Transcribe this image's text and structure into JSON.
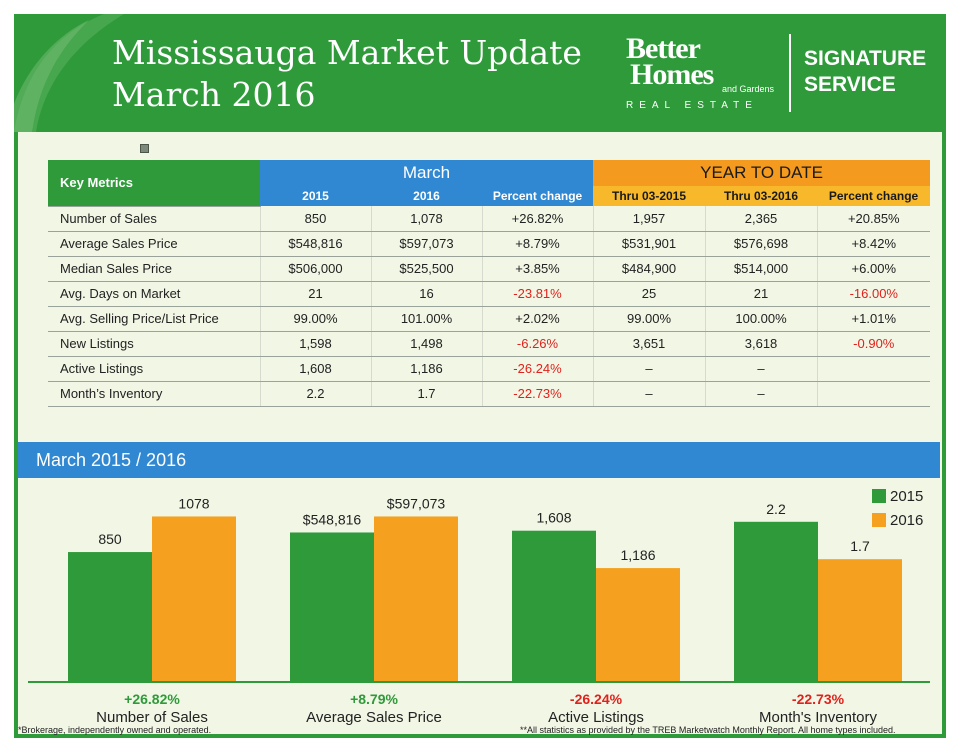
{
  "header": {
    "title_line1": "Mississauga Market Update",
    "title_line2": "March 2016",
    "brand_better": "Better",
    "brand_homes": "Homes",
    "brand_and_gardens": "and Gardens",
    "brand_real_estate": "REAL ESTATE",
    "signature_line1": "SIGNATURE",
    "signature_line2": "SERVICE"
  },
  "table": {
    "key_metrics_label": "Key Metrics",
    "march_label": "March",
    "ytd_label": "YEAR TO DATE",
    "columns": [
      "2015",
      "2016",
      "Percent change",
      "Thru 03-2015",
      "Thru 03-2016",
      "Percent change"
    ],
    "rows": [
      {
        "metric": "Number of Sales",
        "cells": [
          "850",
          "1,078",
          "+26.82%",
          "1,957",
          "2,365",
          "+20.85%"
        ]
      },
      {
        "metric": "Average Sales Price",
        "cells": [
          "$548,816",
          "$597,073",
          "+8.79%",
          "$531,901",
          "$576,698",
          "+8.42%"
        ]
      },
      {
        "metric": "Median Sales Price",
        "cells": [
          "$506,000",
          "$525,500",
          "+3.85%",
          "$484,900",
          "$514,000",
          "+6.00%"
        ]
      },
      {
        "metric": "Avg. Days on Market",
        "cells": [
          "21",
          "16",
          "-23.81%",
          "25",
          "21",
          "-16.00%"
        ]
      },
      {
        "metric": "Avg. Selling Price/List Price",
        "cells": [
          "99.00%",
          "101.00%",
          "+2.02%",
          "99.00%",
          "100.00%",
          "+1.01%"
        ]
      },
      {
        "metric": "New Listings",
        "cells": [
          "1,598",
          "1,498",
          "-6.26%",
          "3,651",
          "3,618",
          "-0.90%"
        ]
      },
      {
        "metric": "Active Listings",
        "cells": [
          "1,608",
          "1,186",
          "-26.24%",
          "–",
          "–",
          ""
        ]
      },
      {
        "metric": "Month’s Inventory",
        "cells": [
          "2.2",
          "1.7",
          "-22.73%",
          "–",
          "–",
          ""
        ]
      }
    ]
  },
  "chart_banner": "March  2015 / 2016",
  "chart_data": {
    "type": "bar",
    "legend_position": "top-right",
    "series": [
      {
        "name": "2015",
        "color": "#2f9a3a"
      },
      {
        "name": "2016",
        "color": "#f5a11f"
      }
    ],
    "groups": [
      {
        "category": "Number of Sales",
        "change": "+26.82%",
        "values": [
          850,
          1078
        ],
        "labels": [
          "850",
          "1078"
        ],
        "relative": [
          0.73,
          0.93
        ]
      },
      {
        "category": "Average Sales Price",
        "change": "+8.79%",
        "values": [
          548816,
          597073
        ],
        "labels": [
          "$548,816",
          "$597,073"
        ],
        "relative": [
          0.84,
          0.93
        ]
      },
      {
        "category": "Active Listings",
        "change": "-26.24%",
        "values": [
          1608,
          1186
        ],
        "labels": [
          "1,608",
          "1,186"
        ],
        "relative": [
          0.85,
          0.64
        ]
      },
      {
        "category": "Month's Inventory",
        "change": "-22.73%",
        "values": [
          2.2,
          1.7
        ],
        "labels": [
          "2.2",
          "1.7"
        ],
        "relative": [
          0.9,
          0.69
        ]
      }
    ],
    "positive_color": "#2f9a3a",
    "negative_color": "#e0221c"
  },
  "footer": {
    "left": "*Brokerage, independently owned and operated.",
    "right": "**All statistics as provided by the TREB  Marketwatch Monthly Report. All home types included."
  }
}
